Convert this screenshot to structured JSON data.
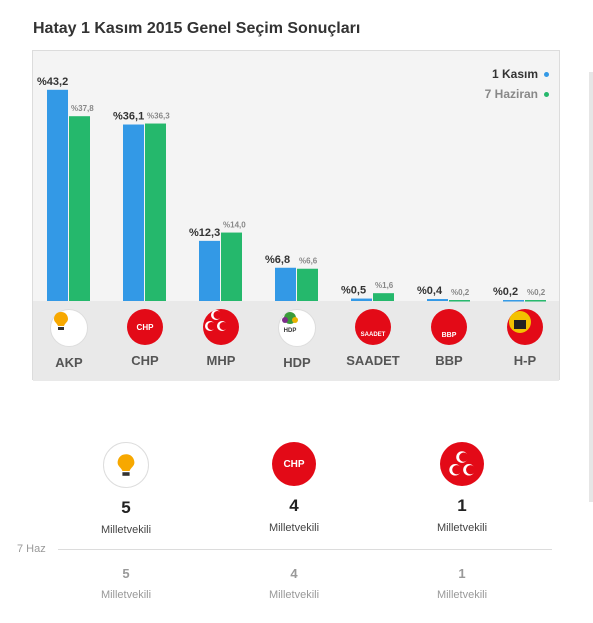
{
  "title": "Hatay 1 Kasım 2015 Genel Seçim Sonuçları",
  "legend": {
    "current": "1 Kasım",
    "previous": "7 Haziran"
  },
  "colors": {
    "current": "#3399e6",
    "previous": "#25b86c"
  },
  "chart_data": {
    "type": "bar",
    "categories": [
      "AKP",
      "CHP",
      "MHP",
      "HDP",
      "SAADET",
      "BBP",
      "H-P"
    ],
    "series": [
      {
        "name": "1 Kasım",
        "values": [
          43.2,
          36.1,
          12.3,
          6.8,
          0.5,
          0.4,
          0.2
        ],
        "labels": [
          "%43,2",
          "%36,1",
          "%12,3",
          "%6,8",
          "%0,5",
          "%0,4",
          "%0,2"
        ]
      },
      {
        "name": "7 Haziran",
        "values": [
          37.8,
          36.3,
          14.0,
          6.6,
          1.6,
          0.2,
          0.2
        ],
        "labels": [
          "%37,8",
          "%36,3",
          "%14,0",
          "%6,6",
          "%1,6",
          "%0,2",
          "%0,2"
        ]
      }
    ],
    "ylim": [
      0,
      45
    ]
  },
  "party_logos": [
    {
      "name": "AKP",
      "icon": "akp-lightbulb-icon",
      "text": "AK PARTİ"
    },
    {
      "name": "CHP",
      "icon": "chp-six-arrows-icon",
      "text": "CHP"
    },
    {
      "name": "MHP",
      "icon": "mhp-three-crescents-icon",
      "text": ""
    },
    {
      "name": "HDP",
      "icon": "hdp-tree-icon",
      "text": "HDP"
    },
    {
      "name": "SAADET",
      "icon": "saadet-crescent-star-icon",
      "text": "SAADET"
    },
    {
      "name": "BBP",
      "icon": "bbp-crescent-icon",
      "text": "BBP"
    },
    {
      "name": "H-P",
      "icon": "hp-emblem-icon",
      "text": ""
    }
  ],
  "seats": {
    "current": [
      {
        "party": "AKP",
        "count": "5",
        "label": "Milletvekili",
        "logo_text": "AK PARTİ"
      },
      {
        "party": "CHP",
        "count": "4",
        "label": "Milletvekili",
        "logo_text": "CHP"
      },
      {
        "party": "MHP",
        "count": "1",
        "label": "Milletvekili",
        "logo_text": ""
      }
    ],
    "previous_label": "7 Haz",
    "previous": [
      {
        "count": "5",
        "label": "Milletvekili"
      },
      {
        "count": "4",
        "label": "Milletvekili"
      },
      {
        "count": "1",
        "label": "Milletvekili"
      }
    ]
  }
}
